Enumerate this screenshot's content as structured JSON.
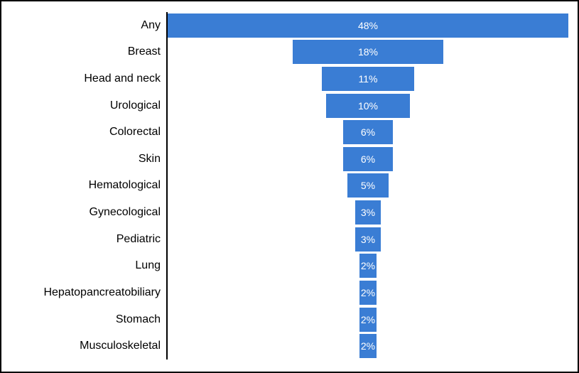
{
  "figure": {
    "background_color": "#ffffff",
    "border_color": "#000000"
  },
  "chart_data": {
    "type": "bar",
    "variant": "horizontal-centered-funnel",
    "title": "",
    "xlabel": "",
    "ylabel": "",
    "categories": [
      "Any",
      "Breast",
      "Head and neck",
      "Urological",
      "Colorectal",
      "Skin",
      "Hematological",
      "Gynecological",
      "Pediatric",
      "Lung",
      "Hepatopancreatobiliary",
      "Stomach",
      "Musculoskeletal"
    ],
    "values": [
      48,
      18,
      11,
      10,
      6,
      6,
      5,
      3,
      3,
      2,
      2,
      2,
      2
    ],
    "labels": [
      "48%",
      "18%",
      "11%",
      "10%",
      "6%",
      "6%",
      "5%",
      "3%",
      "3%",
      "2%",
      "2%",
      "2%",
      "2%"
    ],
    "unit": "%",
    "scale_max": 48,
    "xlim": [
      0,
      48
    ],
    "bar_color": "#3a7dd4",
    "bar_label_color": "#ffffff",
    "category_label_color": "#000000",
    "axis_color": "#000000",
    "grid": false,
    "legend": false,
    "value_labels_position": "center"
  }
}
